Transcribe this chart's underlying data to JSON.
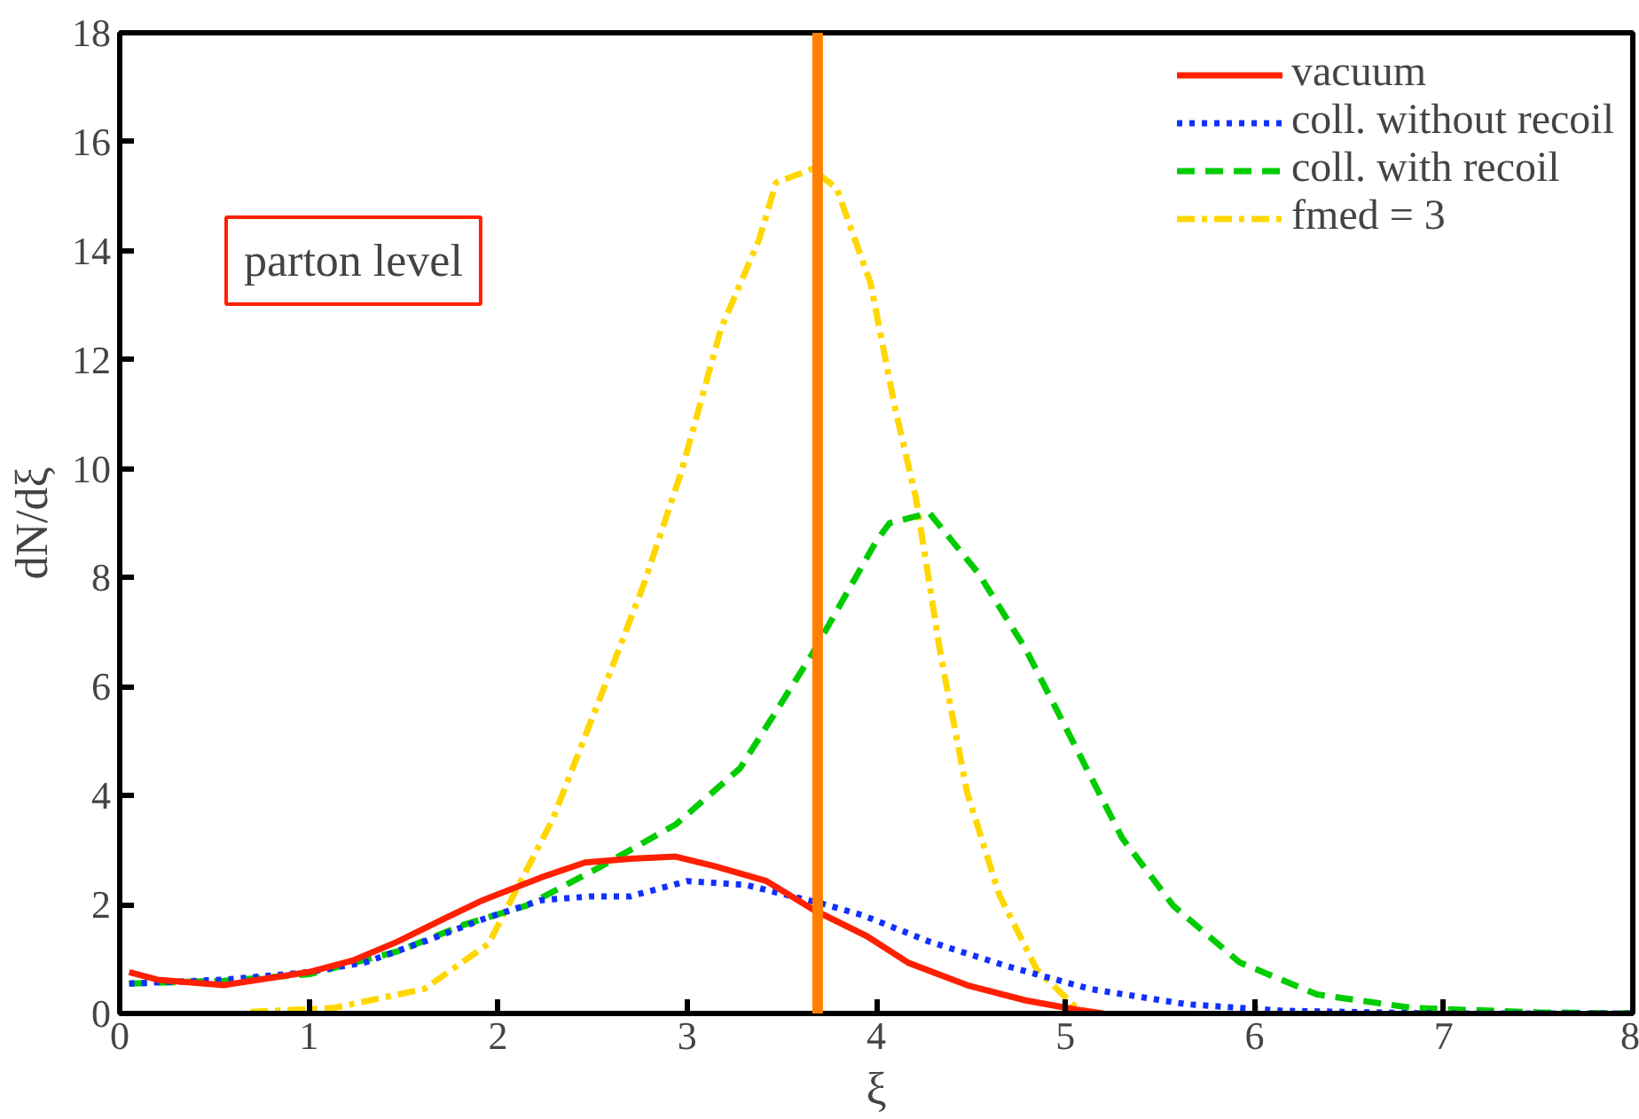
{
  "chart_data": {
    "type": "line",
    "xlabel": "ξ",
    "ylabel": "dN/dξ",
    "xlim": [
      0,
      8
    ],
    "ylim": [
      0,
      18
    ],
    "xticks": [
      0,
      1,
      2,
      3,
      4,
      5,
      6,
      7,
      8
    ],
    "yticks": [
      0,
      2,
      4,
      6,
      8,
      10,
      12,
      14,
      16,
      18
    ],
    "grid": false,
    "legend": "top right",
    "marker": "none",
    "annotations": [
      "parton level"
    ],
    "ref_lines": [
      {
        "axis": "x",
        "value": 3.69,
        "color": "#ff8000"
      }
    ],
    "series": [
      {
        "name": "vacuum",
        "color": "#ff2000",
        "line_style": "solid",
        "x": [
          0.05,
          0.2,
          0.55,
          1.0,
          1.23,
          1.47,
          1.71,
          1.92,
          2.23,
          2.46,
          2.7,
          2.94,
          3.15,
          3.42,
          3.67,
          3.95,
          4.17,
          4.48,
          4.79,
          5.06,
          5.2
        ],
        "values": [
          0.76,
          0.62,
          0.52,
          0.76,
          0.97,
          1.32,
          1.73,
          2.08,
          2.5,
          2.77,
          2.84,
          2.88,
          2.7,
          2.43,
          1.9,
          1.42,
          0.93,
          0.52,
          0.24,
          0.07,
          0
        ]
      },
      {
        "name": "coll. without recoil",
        "color": "#1030ff",
        "line_style": "dotted",
        "x": [
          0.05,
          0.55,
          1.0,
          1.3,
          1.61,
          1.92,
          2.23,
          2.49,
          2.7,
          3.0,
          3.31,
          3.72,
          3.93,
          4.28,
          4.69,
          5.13,
          5.64,
          6.15,
          6.97,
          8.0
        ],
        "values": [
          0.55,
          0.62,
          0.76,
          0.94,
          1.32,
          1.73,
          2.08,
          2.15,
          2.15,
          2.43,
          2.36,
          2.01,
          1.8,
          1.32,
          0.87,
          0.45,
          0.17,
          0.05,
          0,
          0
        ]
      },
      {
        "name": "coll. with recoil",
        "color": "#00cc00",
        "line_style": "dashed",
        "x": [
          0.05,
          0.55,
          1.0,
          1.47,
          1.82,
          2.15,
          2.53,
          2.94,
          3.28,
          3.66,
          4.0,
          4.07,
          4.28,
          4.54,
          4.79,
          5.06,
          5.3,
          5.57,
          5.92,
          6.33,
          6.84,
          7.5,
          8.0
        ],
        "values": [
          0.55,
          0.6,
          0.72,
          1.14,
          1.63,
          1.98,
          2.67,
          3.47,
          4.5,
          6.59,
          8.67,
          9.0,
          9.19,
          8.08,
          6.69,
          4.85,
          3.22,
          1.98,
          0.94,
          0.35,
          0.1,
          0.02,
          0
        ]
      },
      {
        "name": "fmed = 3",
        "color": "#ffd700",
        "line_style": "dashdot",
        "x": [
          0.69,
          1.13,
          1.61,
          1.95,
          2.29,
          2.59,
          2.77,
          2.97,
          3.18,
          3.38,
          3.47,
          3.66,
          3.79,
          3.97,
          4.1,
          4.21,
          4.34,
          4.48,
          4.65,
          4.85,
          5.06,
          5.15
        ],
        "values": [
          0.03,
          0.1,
          0.45,
          1.28,
          3.57,
          6.24,
          7.87,
          9.95,
          12.58,
          14.2,
          15.25,
          15.5,
          15.15,
          13.4,
          11.1,
          9.46,
          6.59,
          4.06,
          2.18,
          0.8,
          0.1,
          0
        ]
      }
    ]
  }
}
